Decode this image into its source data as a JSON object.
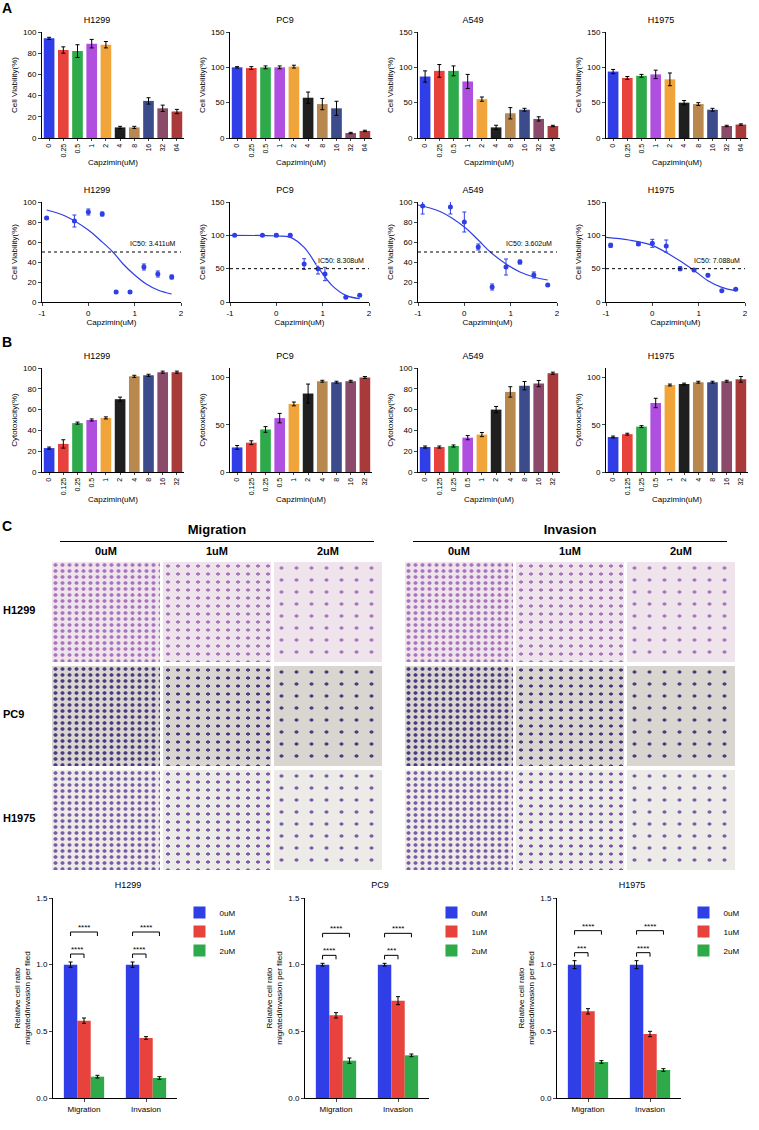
{
  "panels": [
    "A",
    "B",
    "C"
  ],
  "image_grid": {
    "headers": [
      "Migration",
      "Invasion"
    ],
    "columns": [
      "0uM",
      "1uM",
      "2uM"
    ],
    "rows": [
      "H1299",
      "PC9",
      "H1975"
    ]
  },
  "chart_data": [
    {
      "type": "bar",
      "title": "H1299",
      "x_label": "Capzimin(uM)",
      "y_label": "Cell Viability(%)",
      "categories": [
        "0",
        "0.25",
        "0.5",
        "1",
        "2",
        "4",
        "8",
        "16",
        "32",
        "64"
      ],
      "values": [
        94,
        83,
        82,
        89,
        88,
        10,
        10,
        35,
        28,
        25
      ],
      "errors": [
        1,
        3,
        6,
        4,
        3,
        1,
        1,
        3,
        3,
        2
      ],
      "colors": [
        "#2f3ee6",
        "#e8423c",
        "#2eaa4a",
        "#b04ee0",
        "#f0a43a",
        "#1f1f1f",
        "#b8884e",
        "#3b4b8c",
        "#8c4a6b",
        "#a83a3a"
      ],
      "ylim": [
        0,
        100
      ],
      "yticks": [
        0,
        20,
        40,
        60,
        80,
        100
      ],
      "grid": false
    },
    {
      "type": "bar",
      "title": "PC9",
      "x_label": "Capzimin(uM)",
      "y_label": "Cell Viability(%)",
      "categories": [
        "0",
        "0.25",
        "0.5",
        "1",
        "2",
        "4",
        "8",
        "16",
        "32",
        "64"
      ],
      "values": [
        100,
        99,
        100,
        100,
        101,
        57,
        48,
        42,
        7,
        10
      ],
      "errors": [
        1,
        2,
        2,
        2,
        2,
        8,
        8,
        10,
        1,
        1
      ],
      "colors": [
        "#2f3ee6",
        "#e8423c",
        "#2eaa4a",
        "#b04ee0",
        "#f0a43a",
        "#1f1f1f",
        "#b8884e",
        "#3b4b8c",
        "#8c4a6b",
        "#a83a3a"
      ],
      "ylim": [
        0,
        150
      ],
      "yticks": [
        0,
        50,
        100,
        150
      ],
      "grid": false
    },
    {
      "type": "bar",
      "title": "A549",
      "x_label": "Capzimin(uM)",
      "y_label": "Cell Viability(%)",
      "categories": [
        "0",
        "0.25",
        "0.5",
        "1",
        "2",
        "4",
        "8",
        "16",
        "32",
        "64"
      ],
      "values": [
        87,
        95,
        95,
        80,
        55,
        15,
        35,
        40,
        27,
        17
      ],
      "errors": [
        8,
        9,
        7,
        10,
        3,
        3,
        8,
        2,
        3,
        1
      ],
      "colors": [
        "#2f3ee6",
        "#e8423c",
        "#2eaa4a",
        "#b04ee0",
        "#f0a43a",
        "#1f1f1f",
        "#b8884e",
        "#3b4b8c",
        "#8c4a6b",
        "#a83a3a"
      ],
      "ylim": [
        0,
        150
      ],
      "yticks": [
        0,
        50,
        100,
        150
      ],
      "grid": false
    },
    {
      "type": "bar",
      "title": "H1975",
      "x_label": "Capzimin(uM)",
      "y_label": "Cell Viability(%)",
      "categories": [
        "0",
        "0.25",
        "0.5",
        "1",
        "2",
        "4",
        "8",
        "16",
        "32",
        "64"
      ],
      "values": [
        94,
        85,
        88,
        90,
        83,
        50,
        48,
        40,
        17,
        19
      ],
      "errors": [
        3,
        2,
        2,
        6,
        9,
        3,
        2,
        2,
        1,
        1
      ],
      "colors": [
        "#2f3ee6",
        "#e8423c",
        "#2eaa4a",
        "#b04ee0",
        "#f0a43a",
        "#1f1f1f",
        "#b8884e",
        "#3b4b8c",
        "#8c4a6b",
        "#a83a3a"
      ],
      "ylim": [
        0,
        150
      ],
      "yticks": [
        0,
        50,
        100,
        150
      ],
      "grid": false
    },
    {
      "type": "scatter",
      "title": "H1299",
      "x_label": "Capzimin(uM)",
      "y_label": "Cell Viability(%)",
      "x": [
        -0.9,
        -0.3,
        0,
        0.3,
        0.6,
        0.9,
        1.2,
        1.5,
        1.8
      ],
      "values": [
        84,
        81,
        90,
        88,
        10,
        10,
        35,
        28,
        25
      ],
      "errors": [
        1,
        6,
        3,
        2,
        1,
        1,
        3,
        3,
        2
      ],
      "fit": {
        "x": [
          -0.9,
          -0.5,
          0,
          0.25,
          0.53,
          0.75,
          1,
          1.25,
          1.5,
          1.8
        ],
        "values": [
          92,
          86,
          72,
          62,
          50,
          38,
          27,
          18,
          12,
          8
        ]
      },
      "hline": 50,
      "annotation": "IC50: 3.411uM",
      "color": "#2f3ee6",
      "xlim": [
        -1,
        2
      ],
      "xticks": [
        -1,
        0,
        1,
        2
      ],
      "ylim": [
        0,
        100
      ],
      "yticks": [
        0,
        20,
        40,
        60,
        80,
        100
      ],
      "grid": false
    },
    {
      "type": "scatter",
      "title": "PC9",
      "x_label": "Capzimin(uM)",
      "y_label": "Cell Viability(%)",
      "x": [
        -0.9,
        -0.3,
        0,
        0.3,
        0.6,
        0.9,
        1.05,
        1.5,
        1.8
      ],
      "values": [
        100,
        100,
        100,
        100,
        57,
        50,
        42,
        7,
        10
      ],
      "errors": [
        1,
        1,
        2,
        2,
        8,
        8,
        10,
        1,
        1
      ],
      "fit": {
        "x": [
          -1,
          0,
          0.3,
          0.6,
          0.92,
          1.2,
          1.5,
          1.8
        ],
        "values": [
          100,
          99,
          97,
          82,
          50,
          25,
          10,
          5
        ]
      },
      "hline": 50,
      "annotation": "IC50: 8.308uM",
      "color": "#2f3ee6",
      "xlim": [
        -1,
        2
      ],
      "xticks": [
        -1,
        0,
        1,
        2
      ],
      "ylim": [
        0,
        150
      ],
      "yticks": [
        0,
        50,
        100,
        150
      ],
      "grid": false
    },
    {
      "type": "scatter",
      "title": "A549",
      "x_label": "Capzimin(uM)",
      "y_label": "Cell Viability(%)",
      "x": [
        -0.9,
        -0.3,
        0,
        0.3,
        0.6,
        0.9,
        1.2,
        1.5,
        1.8
      ],
      "values": [
        96,
        95,
        80,
        55,
        15,
        35,
        40,
        27,
        17
      ],
      "errors": [
        8,
        7,
        10,
        3,
        3,
        8,
        2,
        3,
        1
      ],
      "fit": {
        "x": [
          -1,
          -0.5,
          0,
          0.3,
          0.56,
          0.9,
          1.2,
          1.5,
          1.8
        ],
        "values": [
          97,
          90,
          75,
          62,
          50,
          38,
          30,
          25,
          22
        ]
      },
      "hline": 50,
      "annotation": "IC50: 3.602uM",
      "color": "#2f3ee6",
      "xlim": [
        -1,
        2
      ],
      "xticks": [
        -1,
        0,
        1,
        2
      ],
      "ylim": [
        0,
        100
      ],
      "yticks": [
        0,
        20,
        40,
        60,
        80,
        100
      ],
      "grid": false
    },
    {
      "type": "scatter",
      "title": "H1975",
      "x_label": "Capzimin(uM)",
      "y_label": "Cell Viability(%)",
      "x": [
        -0.9,
        -0.3,
        0,
        0.3,
        0.6,
        0.9,
        1.2,
        1.5,
        1.8
      ],
      "values": [
        85,
        87,
        88,
        84,
        50,
        48,
        40,
        17,
        19
      ],
      "errors": [
        3,
        2,
        6,
        9,
        3,
        2,
        2,
        1,
        1
      ],
      "fit": {
        "x": [
          -1,
          -0.5,
          0,
          0.4,
          0.85,
          1.2,
          1.5,
          1.8
        ],
        "values": [
          97,
          93,
          85,
          70,
          50,
          32,
          22,
          17
        ]
      },
      "hline": 50,
      "annotation": "IC50: 7.088uM",
      "color": "#2f3ee6",
      "xlim": [
        -1,
        2
      ],
      "xticks": [
        -1,
        0,
        1,
        2
      ],
      "ylim": [
        0,
        150
      ],
      "yticks": [
        0,
        50,
        100,
        150
      ],
      "grid": false
    },
    {
      "type": "bar",
      "title": "H1299",
      "x_label": "Capzimin(uM)",
      "y_label": "Cytotoxicity(%)",
      "categories": [
        "0",
        "0.125",
        "0.25",
        "0.5",
        "1",
        "2",
        "4",
        "8",
        "16",
        "32"
      ],
      "values": [
        23,
        27,
        47,
        50,
        52,
        70,
        92,
        93,
        96,
        96
      ],
      "errors": [
        1,
        4,
        1,
        1,
        1,
        2,
        1,
        1,
        1,
        1
      ],
      "colors": [
        "#2f3ee6",
        "#e8423c",
        "#2eaa4a",
        "#b04ee0",
        "#f0a43a",
        "#1f1f1f",
        "#b8884e",
        "#3b4b8c",
        "#8c4a6b",
        "#a83a3a"
      ],
      "ylim": [
        0,
        100
      ],
      "yticks": [
        0,
        20,
        40,
        60,
        80,
        100
      ],
      "grid": false
    },
    {
      "type": "bar",
      "title": "PC9",
      "x_label": "Capzimin(uM)",
      "y_label": "Cytotoxicity(%)",
      "categories": [
        "0",
        "0.125",
        "0.25",
        "0.5",
        "1",
        "2",
        "4",
        "8",
        "16",
        "32"
      ],
      "values": [
        26,
        31,
        45,
        57,
        72,
        83,
        96,
        95,
        96,
        100
      ],
      "errors": [
        2,
        2,
        3,
        5,
        2,
        10,
        1,
        1,
        1,
        1
      ],
      "colors": [
        "#2f3ee6",
        "#e8423c",
        "#2eaa4a",
        "#b04ee0",
        "#f0a43a",
        "#1f1f1f",
        "#b8884e",
        "#3b4b8c",
        "#8c4a6b",
        "#a83a3a"
      ],
      "ylim": [
        0,
        110
      ],
      "yticks": [
        0,
        50,
        100
      ],
      "grid": false
    },
    {
      "type": "bar",
      "title": "A549",
      "x_label": "Capzimin(uM)",
      "y_label": "Cytotoxicity(%)",
      "categories": [
        "0",
        "0.125",
        "0.25",
        "0.5",
        "1",
        "2",
        "4",
        "8",
        "16",
        "32"
      ],
      "values": [
        24,
        24,
        25,
        33,
        36,
        60,
        77,
        83,
        85,
        95
      ],
      "errors": [
        1,
        1,
        1,
        2,
        2,
        3,
        5,
        4,
        3,
        1
      ],
      "colors": [
        "#2f3ee6",
        "#e8423c",
        "#2eaa4a",
        "#b04ee0",
        "#f0a43a",
        "#1f1f1f",
        "#b8884e",
        "#3b4b8c",
        "#8c4a6b",
        "#a83a3a"
      ],
      "ylim": [
        0,
        100
      ],
      "yticks": [
        0,
        20,
        40,
        60,
        80,
        100
      ],
      "grid": false
    },
    {
      "type": "bar",
      "title": "H1975",
      "x_label": "Capzimin(uM)",
      "y_label": "Cytotoxicity(%)",
      "categories": [
        "0",
        "0.125",
        "0.25",
        "0.5",
        "1",
        "2",
        "4",
        "8",
        "16",
        "32"
      ],
      "values": [
        37,
        40,
        48,
        73,
        92,
        93,
        95,
        95,
        96,
        98
      ],
      "errors": [
        1,
        1,
        1,
        5,
        1,
        1,
        1,
        1,
        1,
        3
      ],
      "colors": [
        "#2f3ee6",
        "#e8423c",
        "#2eaa4a",
        "#b04ee0",
        "#f0a43a",
        "#1f1f1f",
        "#b8884e",
        "#3b4b8c",
        "#8c4a6b",
        "#a83a3a"
      ],
      "ylim": [
        0,
        110
      ],
      "yticks": [
        0,
        50,
        100
      ],
      "grid": false
    },
    {
      "type": "bar",
      "title": "H1299",
      "y_label": "Relative cell ratio migrated/invasion per filed",
      "categories": [
        "Migration",
        "Invasion"
      ],
      "series": [
        {
          "name": "0uM",
          "color": "#2f3ee6",
          "values": [
            1.0,
            1.0
          ],
          "errors": [
            0.02,
            0.02
          ]
        },
        {
          "name": "1uM",
          "color": "#e8423c",
          "values": [
            0.58,
            0.45
          ],
          "errors": [
            0.02,
            0.01
          ]
        },
        {
          "name": "2uM",
          "color": "#2eaa4a",
          "values": [
            0.16,
            0.15
          ],
          "errors": [
            0.01,
            0.01
          ]
        }
      ],
      "significance": [
        {
          "group": "Migration",
          "pair": [
            "0uM",
            "1uM"
          ],
          "label": "****"
        },
        {
          "group": "Migration",
          "pair": [
            "0uM",
            "2uM"
          ],
          "label": "****"
        },
        {
          "group": "Invasion",
          "pair": [
            "0uM",
            "1uM"
          ],
          "label": "****"
        },
        {
          "group": "Invasion",
          "pair": [
            "0uM",
            "2uM"
          ],
          "label": "****"
        }
      ],
      "ylim": [
        0,
        1.5
      ],
      "yticks": [
        {
          "value": 0,
          "label": "0.0"
        },
        {
          "value": 0.5,
          "label": "0.5"
        },
        {
          "value": 1,
          "label": "1.0"
        },
        {
          "value": 1.5,
          "label": "1.5"
        }
      ],
      "legend": "right",
      "grid": false
    },
    {
      "type": "bar",
      "title": "PC9",
      "y_label": "Relative cell ratio migrated/invasion per filed",
      "categories": [
        "Migration",
        "Invasion"
      ],
      "series": [
        {
          "name": "0uM",
          "color": "#2f3ee6",
          "values": [
            1.0,
            1.0
          ],
          "errors": [
            0.01,
            0.01
          ]
        },
        {
          "name": "1uM",
          "color": "#e8423c",
          "values": [
            0.62,
            0.73
          ],
          "errors": [
            0.02,
            0.03
          ]
        },
        {
          "name": "2uM",
          "color": "#2eaa4a",
          "values": [
            0.28,
            0.32
          ],
          "errors": [
            0.02,
            0.01
          ]
        }
      ],
      "significance": [
        {
          "group": "Migration",
          "pair": [
            "0uM",
            "1uM"
          ],
          "label": "****"
        },
        {
          "group": "Migration",
          "pair": [
            "0uM",
            "2uM"
          ],
          "label": "****"
        },
        {
          "group": "Invasion",
          "pair": [
            "0uM",
            "1uM"
          ],
          "label": "***"
        },
        {
          "group": "Invasion",
          "pair": [
            "0uM",
            "2uM"
          ],
          "label": "****"
        }
      ],
      "ylim": [
        0,
        1.5
      ],
      "yticks": [
        {
          "value": 0,
          "label": "0.0"
        },
        {
          "value": 0.5,
          "label": "0.5"
        },
        {
          "value": 1,
          "label": "1.0"
        },
        {
          "value": 1.5,
          "label": "1.5"
        }
      ],
      "legend": "right",
      "grid": false
    },
    {
      "type": "bar",
      "title": "H1975",
      "y_label": "Relative cell ratio migrated/invasion per filed",
      "categories": [
        "Migration",
        "Invasion"
      ],
      "series": [
        {
          "name": "0uM",
          "color": "#2f3ee6",
          "values": [
            1.0,
            1.0
          ],
          "errors": [
            0.03,
            0.03
          ]
        },
        {
          "name": "1uM",
          "color": "#e8423c",
          "values": [
            0.65,
            0.48
          ],
          "errors": [
            0.02,
            0.02
          ]
        },
        {
          "name": "2uM",
          "color": "#2eaa4a",
          "values": [
            0.27,
            0.21
          ],
          "errors": [
            0.01,
            0.01
          ]
        }
      ],
      "significance": [
        {
          "group": "Migration",
          "pair": [
            "0uM",
            "1uM"
          ],
          "label": "***"
        },
        {
          "group": "Migration",
          "pair": [
            "0uM",
            "2uM"
          ],
          "label": "****"
        },
        {
          "group": "Invasion",
          "pair": [
            "0uM",
            "1uM"
          ],
          "label": "****"
        },
        {
          "group": "Invasion",
          "pair": [
            "0uM",
            "2uM"
          ],
          "label": "****"
        }
      ],
      "ylim": [
        0,
        1.5
      ],
      "yticks": [
        {
          "value": 0,
          "label": "0.0"
        },
        {
          "value": 0.5,
          "label": "0.5"
        },
        {
          "value": 1,
          "label": "1.0"
        },
        {
          "value": 1.5,
          "label": "1.5"
        }
      ],
      "legend": "right",
      "grid": false
    }
  ]
}
